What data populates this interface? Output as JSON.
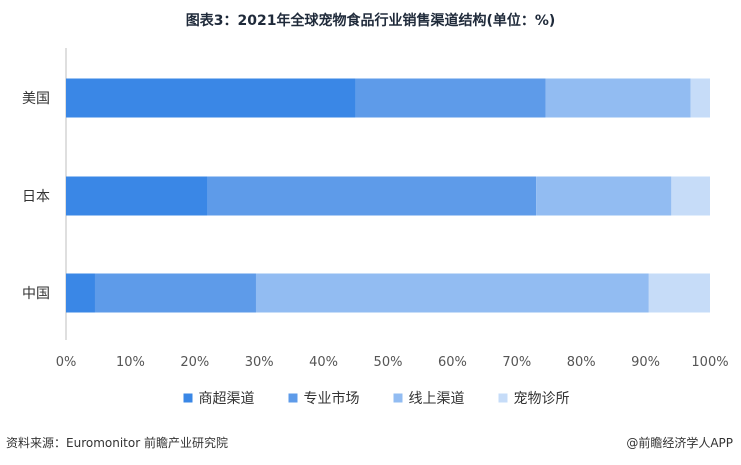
{
  "chart_data": {
    "type": "bar",
    "orientation": "horizontal",
    "stacked": true,
    "title": "图表3：2021年全球宠物食品行业销售渠道结构(单位：%)",
    "categories": [
      "美国",
      "日本",
      "中国"
    ],
    "series": [
      {
        "name": "商超渠道",
        "color": "#3a87e6",
        "values": [
          45.0,
          22.0,
          4.5
        ]
      },
      {
        "name": "专业市场",
        "color": "#5e9be9",
        "values": [
          29.5,
          51.0,
          25.0
        ]
      },
      {
        "name": "线上渠道",
        "color": "#92bcf2",
        "values": [
          22.5,
          21.0,
          61.0
        ]
      },
      {
        "name": "宠物诊所",
        "color": "#c6dcf8",
        "values": [
          3.0,
          6.0,
          9.5
        ]
      }
    ],
    "x_ticks": [
      "0%",
      "10%",
      "20%",
      "30%",
      "40%",
      "50%",
      "60%",
      "70%",
      "80%",
      "90%",
      "100%"
    ],
    "xlim": [
      0,
      100
    ],
    "grid": false,
    "legend_position": "bottom"
  },
  "footer": {
    "source": "资料来源：Euromonitor 前瞻产业研究院",
    "brand": "@前瞻经济学人APP"
  }
}
